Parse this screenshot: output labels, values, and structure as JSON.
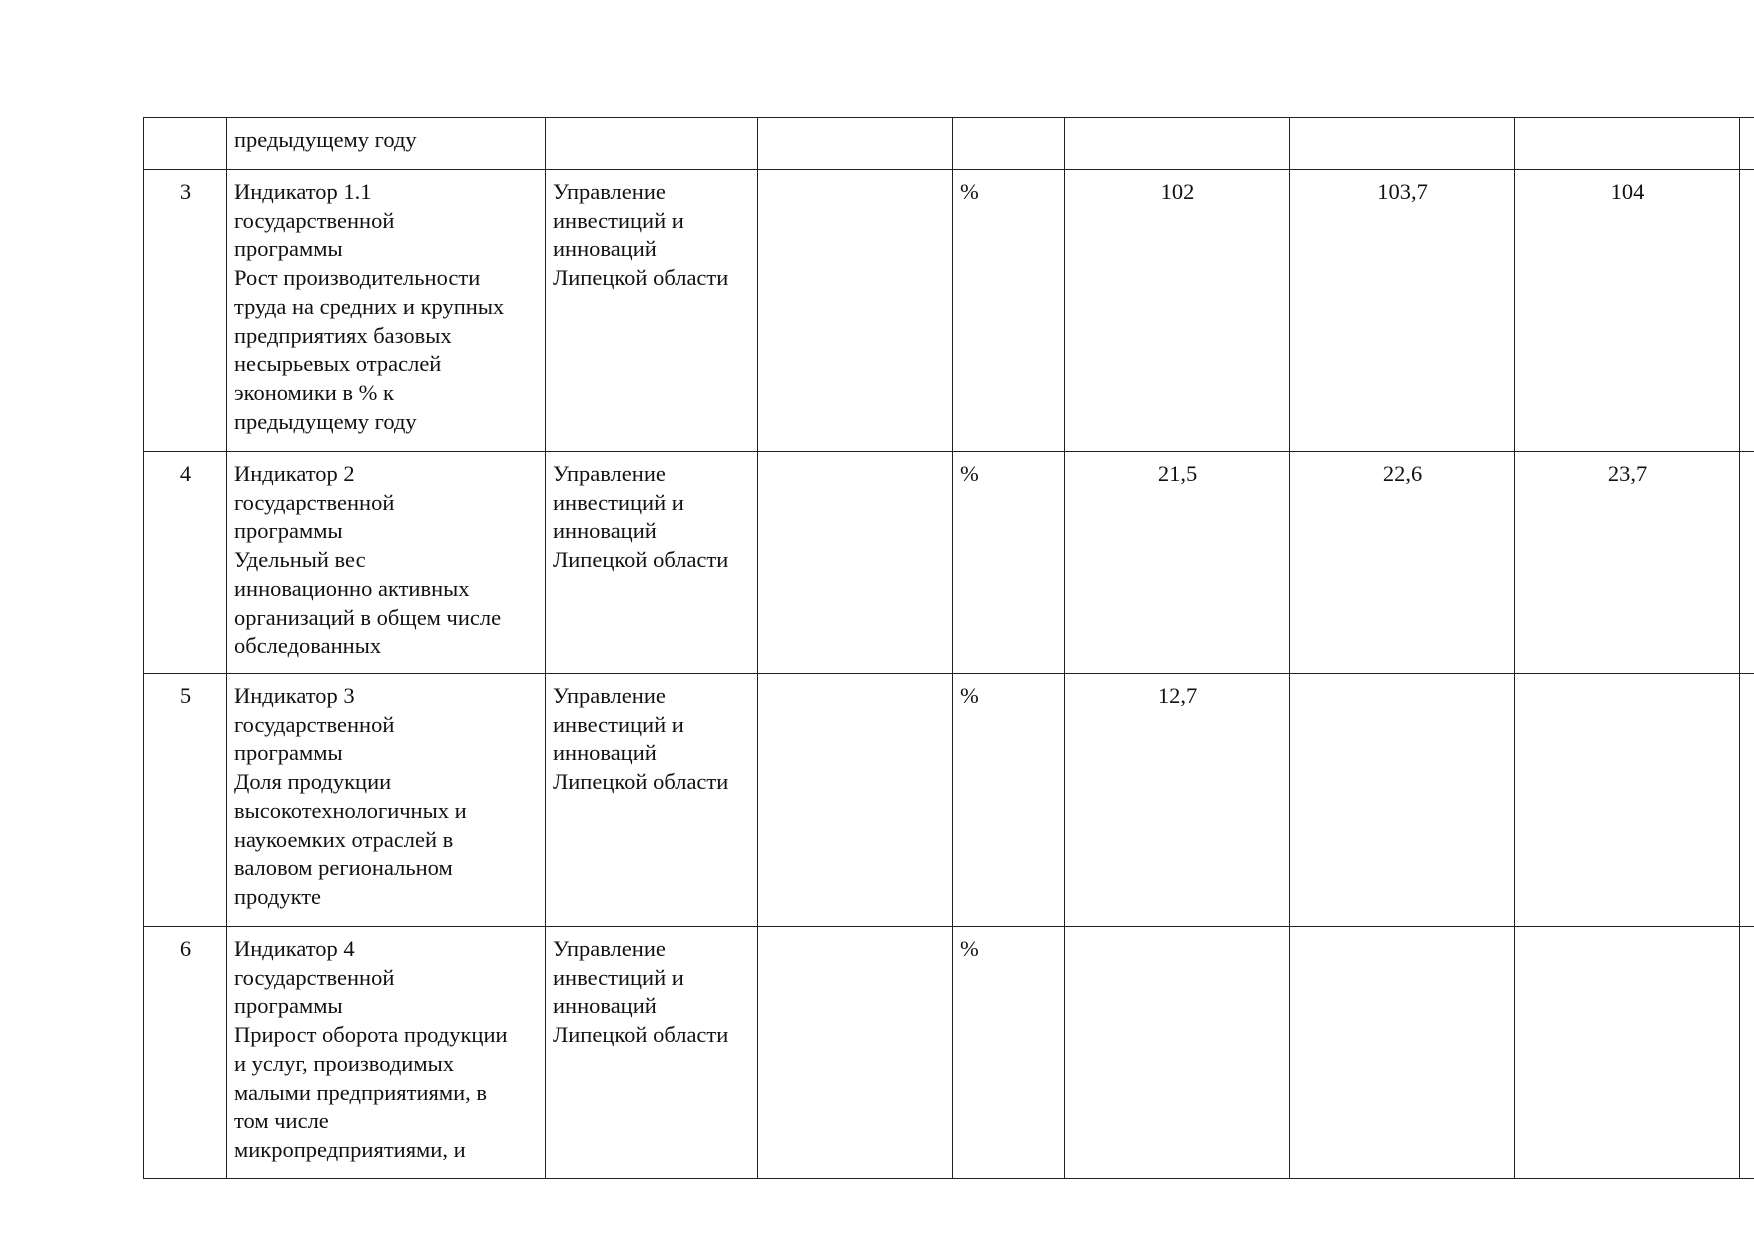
{
  "rows": [
    {
      "num": "",
      "indicator": "предыдущему году",
      "responsible": "",
      "col4": "",
      "unit": "",
      "v1": "",
      "v2": "",
      "v3": ""
    },
    {
      "num": "3",
      "indicator": "Индикатор 1.1\nгосударственной\nпрограммы\nРост производительности\nтруда на средних и крупных\nпредприятиях базовых\nнесырьевых отраслей\nэкономики в % к\nпредыдущему году",
      "responsible": "Управление\nинвестиций и\nинноваций\nЛипецкой области",
      "col4": "",
      "unit": "%",
      "v1": "102",
      "v2": "103,7",
      "v3": "104"
    },
    {
      "num": "4",
      "indicator": "Индикатор 2\nгосударственной\nпрограммы\nУдельный вес\nинновационно активных\nорганизаций в общем числе\nобследованных",
      "responsible": "Управление\nинвестиций и\nинноваций\nЛипецкой области",
      "col4": "",
      "unit": "%",
      "v1": "21,5",
      "v2": "22,6",
      "v3": "23,7"
    },
    {
      "num": "5",
      "indicator": "Индикатор 3\nгосударственной\nпрограммы\nДоля продукции\nвысокотехнологичных и\nнаукоемких отраслей в\nваловом региональном\nпродукте",
      "responsible": "Управление\nинвестиций и\nинноваций\nЛипецкой области",
      "col4": "",
      "unit": "%",
      "v1": "12,7",
      "v2": "",
      "v3": ""
    },
    {
      "num": "6",
      "indicator": "Индикатор 4\nгосударственной\nпрограммы\nПрирост оборота продукции\nи услуг, производимых\nмалыми предприятиями, в\nтом числе\nмикропредприятиями, и",
      "responsible": "Управление\nинвестиций и\nинноваций\nЛипецкой области",
      "col4": "",
      "unit": "%",
      "v1": "",
      "v2": "",
      "v3": ""
    }
  ]
}
